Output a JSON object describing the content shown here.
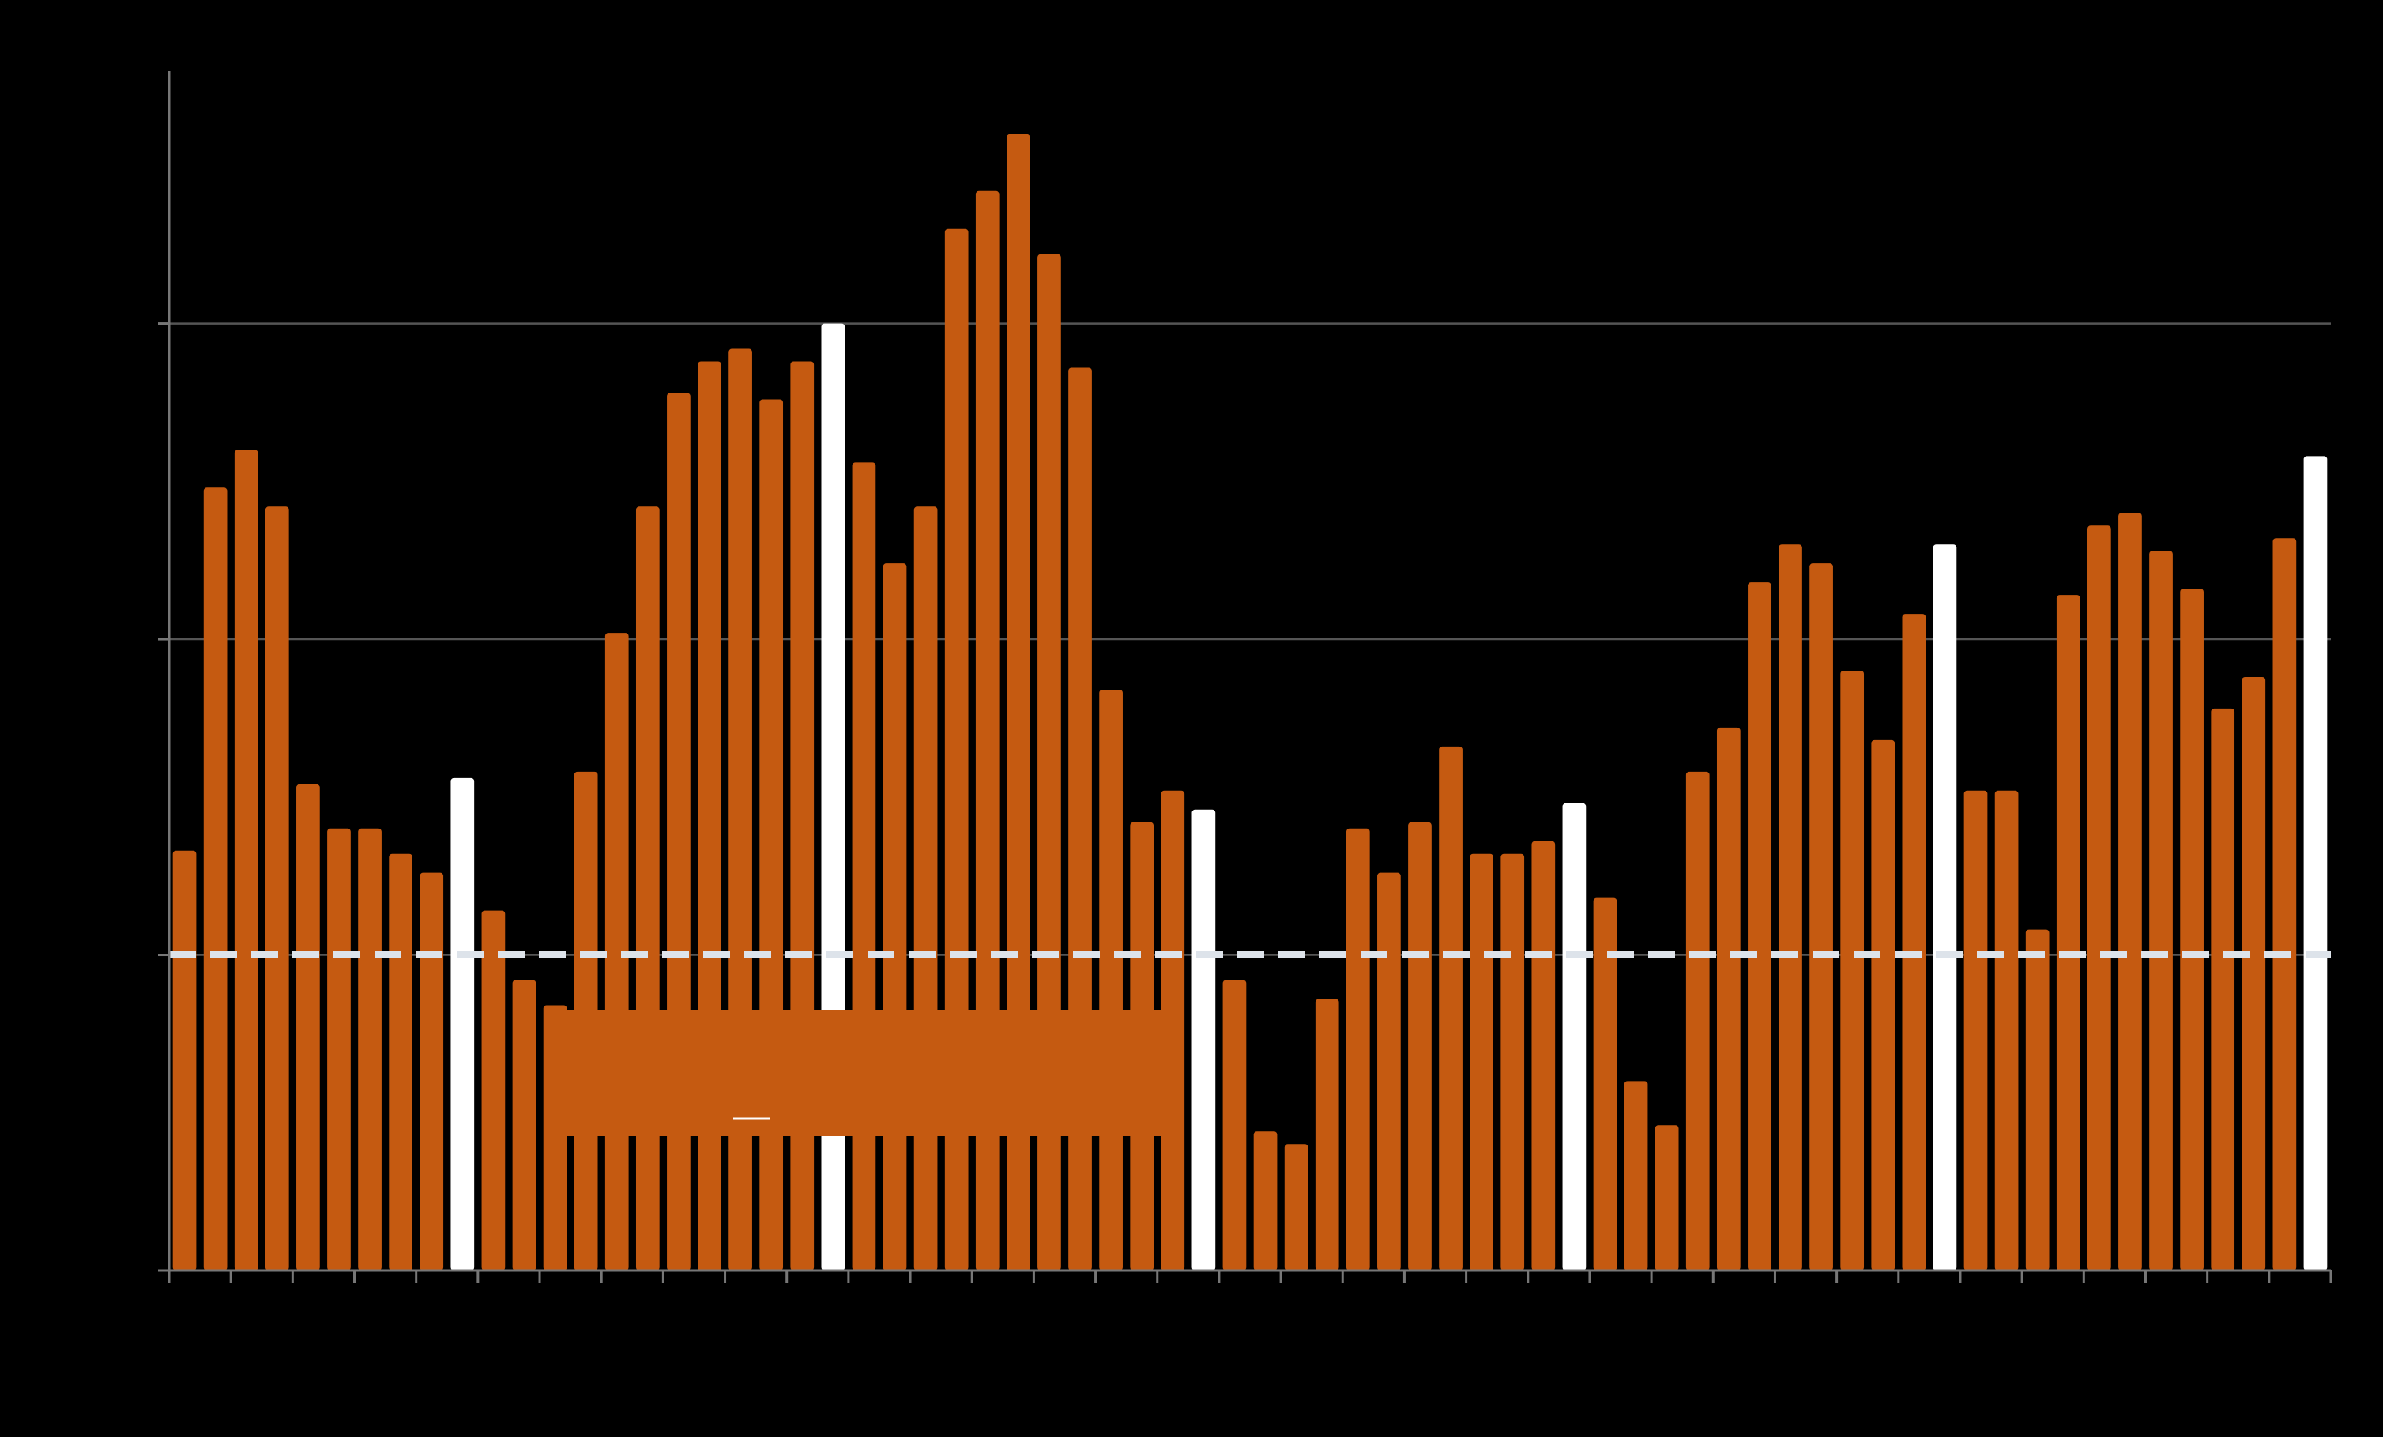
{
  "chart_data": {
    "type": "bar",
    "title": "",
    "xlabel": "",
    "ylabel": "",
    "ylim": [
      0,
      3.8
    ],
    "yticks": [
      0,
      1,
      2,
      3
    ],
    "grid": true,
    "reference_line": {
      "value": 1,
      "style": "dashed",
      "color": "#dde3ea"
    },
    "colors": {
      "bar": "#c55a11",
      "highlight": "#ffffff",
      "background": "#000000"
    },
    "values": [
      1.33,
      2.48,
      2.6,
      2.42,
      1.54,
      1.4,
      1.4,
      1.32,
      1.26,
      1.56,
      1.14,
      0.92,
      0.84,
      1.58,
      2.02,
      2.42,
      2.78,
      2.88,
      2.92,
      2.76,
      2.88,
      3.0,
      2.56,
      2.24,
      2.42,
      3.3,
      3.42,
      3.6,
      3.22,
      2.86,
      1.84,
      1.42,
      1.52,
      1.46,
      0.92,
      0.44,
      0.4,
      0.86,
      1.4,
      1.26,
      1.42,
      1.66,
      1.32,
      1.32,
      1.36,
      1.48,
      1.18,
      0.6,
      0.46,
      1.58,
      1.72,
      2.18,
      2.3,
      2.24,
      1.9,
      1.68,
      2.08,
      2.3,
      1.52,
      1.52,
      1.08,
      2.14,
      2.36,
      2.4,
      2.28,
      2.16,
      1.78,
      1.88,
      2.32,
      2.58
    ],
    "highlight_indices": [
      9,
      21,
      33,
      45,
      57,
      69
    ],
    "legend": {
      "placement": "lower-center",
      "entries": [
        {
          "label": "",
          "color": "#c55a11"
        },
        {
          "label": "",
          "color": "#ffffff"
        }
      ]
    }
  }
}
